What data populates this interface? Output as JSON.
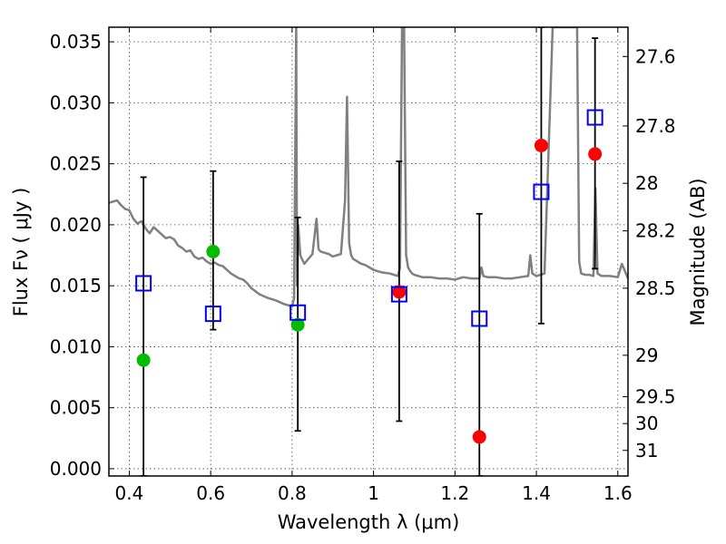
{
  "chart_data": {
    "type": "scatter",
    "xlabel": "Wavelength  λ (μm)",
    "ylabel": "Flux  Fν  ( μJy )",
    "ylabel2": "Magnitude (AB)",
    "xlim": [
      0.35,
      1.625
    ],
    "ylim": [
      -0.0006,
      0.0362
    ],
    "grid": true,
    "xticks": [
      0.4,
      0.6,
      0.8,
      1.0,
      1.2,
      1.4,
      1.6
    ],
    "xtick_labels": [
      "0.4",
      "0.6",
      "0.8",
      "1",
      "1.2",
      "1.4",
      "1.6"
    ],
    "yticks": [
      0.0,
      0.005,
      0.01,
      0.015,
      0.02,
      0.025,
      0.03,
      0.035
    ],
    "ytick_labels": [
      "0.000",
      "0.005",
      "0.010",
      "0.015",
      "0.020",
      "0.025",
      "0.030",
      "0.035"
    ],
    "mag_ticks": [
      {
        "label": "27.6",
        "flux": 0.0338
      },
      {
        "label": "27.8",
        "flux": 0.0281
      },
      {
        "label": "28",
        "flux": 0.0234
      },
      {
        "label": "28.2",
        "flux": 0.0195
      },
      {
        "label": "28.5",
        "flux": 0.0148
      },
      {
        "label": "29",
        "flux": 0.0093
      },
      {
        "label": "29.5",
        "flux": 0.0059
      },
      {
        "label": "30",
        "flux": 0.0037
      },
      {
        "label": "31",
        "flux": 0.0015
      }
    ],
    "colors": {
      "model": "#808080",
      "green": "#00bb00",
      "red": "#ff0000",
      "squares": "#0000cc",
      "errorbar": "#000000"
    },
    "series": [
      {
        "marker": "circle",
        "color": "green",
        "x": [
          0.435,
          0.606,
          0.814
        ],
        "y": [
          0.0089,
          0.0178,
          0.0118
        ]
      },
      {
        "marker": "circle",
        "color": "red",
        "x": [
          1.063,
          1.26,
          1.412,
          1.544
        ],
        "y": [
          0.0145,
          0.0026,
          0.0265,
          0.0258
        ]
      },
      {
        "marker": "square",
        "color": "blue",
        "x": [
          0.435,
          0.606,
          0.814,
          1.063,
          1.26,
          1.412,
          1.544
        ],
        "y": [
          0.0152,
          0.0127,
          0.0128,
          0.0143,
          0.0123,
          0.0227,
          0.0288
        ]
      }
    ],
    "errorbars": [
      {
        "x": 0.435,
        "low": -0.0006,
        "high": 0.0239
      },
      {
        "x": 0.606,
        "low": 0.0114,
        "high": 0.0244
      },
      {
        "x": 0.814,
        "low": 0.0031,
        "high": 0.0206
      },
      {
        "x": 1.063,
        "low": 0.0039,
        "high": 0.0252
      },
      {
        "x": 1.26,
        "low": -0.0006,
        "high": 0.0209
      },
      {
        "x": 1.412,
        "low": 0.0119,
        "high": 0.0362
      },
      {
        "x": 1.544,
        "low": 0.0164,
        "high": 0.0353
      }
    ],
    "model_spectrum": {
      "x": [
        0.35,
        0.37,
        0.38,
        0.39,
        0.4,
        0.41,
        0.42,
        0.43,
        0.44,
        0.45,
        0.46,
        0.47,
        0.48,
        0.49,
        0.5,
        0.51,
        0.52,
        0.53,
        0.54,
        0.55,
        0.56,
        0.57,
        0.58,
        0.59,
        0.6,
        0.61,
        0.62,
        0.63,
        0.64,
        0.65,
        0.66,
        0.67,
        0.68,
        0.69,
        0.7,
        0.72,
        0.74,
        0.76,
        0.78,
        0.8,
        0.805,
        0.81,
        0.812,
        0.815,
        0.82,
        0.83,
        0.84,
        0.85,
        0.86,
        0.865,
        0.87,
        0.88,
        0.89,
        0.9,
        0.91,
        0.92,
        0.93,
        0.935,
        0.94,
        0.945,
        0.95,
        0.96,
        0.97,
        0.98,
        0.99,
        1.0,
        1.02,
        1.04,
        1.06,
        1.065,
        1.07,
        1.075,
        1.08,
        1.085,
        1.09,
        1.095,
        1.1,
        1.12,
        1.14,
        1.16,
        1.18,
        1.2,
        1.22,
        1.24,
        1.26,
        1.265,
        1.27,
        1.28,
        1.3,
        1.32,
        1.34,
        1.36,
        1.38,
        1.385,
        1.39,
        1.4,
        1.42,
        1.44,
        1.46,
        1.47,
        1.48,
        1.49,
        1.5,
        1.505,
        1.51,
        1.52,
        1.53,
        1.54,
        1.545,
        1.55,
        1.56,
        1.58,
        1.6,
        1.61,
        1.625
      ],
      "y": [
        0.0218,
        0.022,
        0.0216,
        0.0213,
        0.0212,
        0.0205,
        0.0201,
        0.0203,
        0.0197,
        0.0193,
        0.0198,
        0.0195,
        0.0192,
        0.0189,
        0.019,
        0.0188,
        0.0183,
        0.0181,
        0.0178,
        0.0179,
        0.0174,
        0.0172,
        0.0173,
        0.017,
        0.0168,
        0.0169,
        0.0167,
        0.0166,
        0.0163,
        0.016,
        0.0158,
        0.0156,
        0.0155,
        0.0152,
        0.0148,
        0.0143,
        0.014,
        0.0138,
        0.0135,
        0.0133,
        0.014,
        0.0362,
        0.015,
        0.02,
        0.0175,
        0.0168,
        0.0172,
        0.0176,
        0.0205,
        0.018,
        0.0178,
        0.0177,
        0.0176,
        0.0174,
        0.0175,
        0.0176,
        0.022,
        0.0305,
        0.0185,
        0.0175,
        0.0172,
        0.017,
        0.0168,
        0.0167,
        0.0165,
        0.0163,
        0.0161,
        0.016,
        0.0158,
        0.0165,
        0.0362,
        0.0362,
        0.0175,
        0.0165,
        0.0162,
        0.016,
        0.0159,
        0.0157,
        0.0157,
        0.0156,
        0.0156,
        0.0155,
        0.0157,
        0.0156,
        0.0156,
        0.0165,
        0.0158,
        0.0157,
        0.0157,
        0.0156,
        0.0156,
        0.0157,
        0.0158,
        0.0175,
        0.016,
        0.0158,
        0.016,
        0.0362,
        0.0362,
        0.0362,
        0.0362,
        0.0362,
        0.0362,
        0.017,
        0.016,
        0.0159,
        0.0159,
        0.0158,
        0.023,
        0.016,
        0.0158,
        0.0158,
        0.0157,
        0.0168,
        0.0156
      ]
    }
  }
}
